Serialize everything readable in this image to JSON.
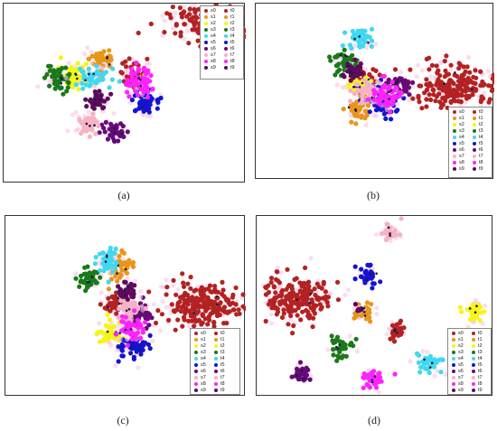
{
  "legend_labels": {
    "s": [
      "s0",
      "s1",
      "s2",
      "s3",
      "s4",
      "s5",
      "s6",
      "s7",
      "s8",
      "s9"
    ],
    "t": [
      "t0",
      "t1",
      "t2",
      "t3",
      "t4",
      "t5",
      "t6",
      "t7",
      "t8",
      "t9"
    ]
  },
  "class_colors": [
    "#b32222",
    "#e8961a",
    "#f5f516",
    "#197a19",
    "#40d8f0",
    "#1414d0",
    "#660a78",
    "#f7b2c4",
    "#ff22ff",
    "#5c0a5c"
  ],
  "chart_data": [
    {
      "type": "scatter",
      "caption": "(a)",
      "legend_position": "top-right",
      "clusters": [
        {
          "class": 0,
          "x": 0.87,
          "y": 0.1,
          "n": 200,
          "spread": [
            0.09,
            0.055
          ]
        },
        {
          "class": 0,
          "x": 0.53,
          "y": 0.39,
          "n": 35,
          "spread": [
            0.028,
            0.032
          ]
        },
        {
          "class": 1,
          "x": 0.41,
          "y": 0.31,
          "n": 45,
          "spread": [
            0.028,
            0.03
          ]
        },
        {
          "class": 2,
          "x": 0.3,
          "y": 0.39,
          "n": 45,
          "spread": [
            0.028,
            0.035
          ]
        },
        {
          "class": 3,
          "x": 0.23,
          "y": 0.42,
          "n": 45,
          "spread": [
            0.027,
            0.035
          ]
        },
        {
          "class": 4,
          "x": 0.36,
          "y": 0.41,
          "n": 45,
          "spread": [
            0.038,
            0.028
          ]
        },
        {
          "class": 5,
          "x": 0.59,
          "y": 0.55,
          "n": 55,
          "spread": [
            0.028,
            0.04
          ]
        },
        {
          "class": 6,
          "x": 0.46,
          "y": 0.71,
          "n": 40,
          "spread": [
            0.022,
            0.03
          ]
        },
        {
          "class": 7,
          "x": 0.34,
          "y": 0.67,
          "n": 40,
          "spread": [
            0.025,
            0.03
          ]
        },
        {
          "class": 8,
          "x": 0.56,
          "y": 0.43,
          "n": 55,
          "spread": [
            0.025,
            0.045
          ]
        },
        {
          "class": 9,
          "x": 0.39,
          "y": 0.53,
          "n": 35,
          "spread": [
            0.023,
            0.028
          ]
        }
      ]
    },
    {
      "type": "scatter",
      "caption": "(b)",
      "legend_position": "bottom-right",
      "clusters": [
        {
          "class": 0,
          "x": 0.84,
          "y": 0.47,
          "n": 200,
          "spread": [
            0.09,
            0.055
          ]
        },
        {
          "class": 0,
          "x": 0.46,
          "y": 0.43,
          "n": 35,
          "spread": [
            0.022,
            0.035
          ]
        },
        {
          "class": 1,
          "x": 0.43,
          "y": 0.6,
          "n": 40,
          "spread": [
            0.025,
            0.03
          ]
        },
        {
          "class": 2,
          "x": 0.43,
          "y": 0.46,
          "n": 40,
          "spread": [
            0.03,
            0.028
          ]
        },
        {
          "class": 3,
          "x": 0.37,
          "y": 0.33,
          "n": 40,
          "spread": [
            0.025,
            0.03
          ]
        },
        {
          "class": 4,
          "x": 0.44,
          "y": 0.2,
          "n": 40,
          "spread": [
            0.025,
            0.03
          ]
        },
        {
          "class": 5,
          "x": 0.52,
          "y": 0.55,
          "n": 60,
          "spread": [
            0.035,
            0.05
          ]
        },
        {
          "class": 6,
          "x": 0.6,
          "y": 0.46,
          "n": 35,
          "spread": [
            0.022,
            0.028
          ]
        },
        {
          "class": 7,
          "x": 0.47,
          "y": 0.5,
          "n": 40,
          "spread": [
            0.03,
            0.03
          ]
        },
        {
          "class": 8,
          "x": 0.55,
          "y": 0.52,
          "n": 50,
          "spread": [
            0.03,
            0.045
          ]
        },
        {
          "class": 9,
          "x": 0.41,
          "y": 0.39,
          "n": 35,
          "spread": [
            0.022,
            0.028
          ]
        }
      ]
    },
    {
      "type": "scatter",
      "caption": "(c)",
      "legend_position": "bottom-right",
      "clusters": [
        {
          "class": 0,
          "x": 0.82,
          "y": 0.5,
          "n": 200,
          "spread": [
            0.08,
            0.06
          ]
        },
        {
          "class": 0,
          "x": 0.45,
          "y": 0.48,
          "n": 35,
          "spread": [
            0.022,
            0.03
          ]
        },
        {
          "class": 1,
          "x": 0.48,
          "y": 0.28,
          "n": 40,
          "spread": [
            0.025,
            0.035
          ]
        },
        {
          "class": 2,
          "x": 0.43,
          "y": 0.65,
          "n": 45,
          "spread": [
            0.025,
            0.035
          ]
        },
        {
          "class": 3,
          "x": 0.35,
          "y": 0.35,
          "n": 40,
          "spread": [
            0.025,
            0.03
          ]
        },
        {
          "class": 4,
          "x": 0.42,
          "y": 0.24,
          "n": 40,
          "spread": [
            0.025,
            0.035
          ]
        },
        {
          "class": 5,
          "x": 0.53,
          "y": 0.73,
          "n": 55,
          "spread": [
            0.03,
            0.04
          ]
        },
        {
          "class": 6,
          "x": 0.57,
          "y": 0.55,
          "n": 40,
          "spread": [
            0.025,
            0.032
          ]
        },
        {
          "class": 7,
          "x": 0.52,
          "y": 0.52,
          "n": 40,
          "spread": [
            0.025,
            0.03
          ]
        },
        {
          "class": 8,
          "x": 0.52,
          "y": 0.63,
          "n": 45,
          "spread": [
            0.025,
            0.035
          ]
        },
        {
          "class": 9,
          "x": 0.5,
          "y": 0.42,
          "n": 35,
          "spread": [
            0.022,
            0.028
          ]
        }
      ]
    },
    {
      "type": "scatter",
      "caption": "(d)",
      "legend_position": "bottom-right",
      "clusters": [
        {
          "class": 0,
          "x": 0.18,
          "y": 0.45,
          "n": 180,
          "spread": [
            0.07,
            0.06
          ]
        },
        {
          "class": 0,
          "x": 0.59,
          "y": 0.63,
          "n": 30,
          "spread": [
            0.02,
            0.025
          ]
        },
        {
          "class": 1,
          "x": 0.45,
          "y": 0.53,
          "n": 35,
          "spread": [
            0.022,
            0.028
          ]
        },
        {
          "class": 2,
          "x": 0.92,
          "y": 0.54,
          "n": 35,
          "spread": [
            0.022,
            0.03
          ]
        },
        {
          "class": 3,
          "x": 0.35,
          "y": 0.73,
          "n": 35,
          "spread": [
            0.022,
            0.028
          ]
        },
        {
          "class": 4,
          "x": 0.73,
          "y": 0.81,
          "n": 35,
          "spread": [
            0.025,
            0.028
          ]
        },
        {
          "class": 5,
          "x": 0.47,
          "y": 0.33,
          "n": 35,
          "spread": [
            0.022,
            0.025
          ]
        },
        {
          "class": 6,
          "x": 0.19,
          "y": 0.87,
          "n": 30,
          "spread": [
            0.02,
            0.025
          ]
        },
        {
          "class": 7,
          "x": 0.56,
          "y": 0.09,
          "n": 30,
          "spread": [
            0.02,
            0.025
          ]
        },
        {
          "class": 8,
          "x": 0.49,
          "y": 0.9,
          "n": 35,
          "spread": [
            0.022,
            0.027
          ]
        },
        {
          "class": 9,
          "x": 0.44,
          "y": 0.52,
          "n": 8,
          "spread": [
            0.01,
            0.012
          ]
        }
      ]
    }
  ]
}
